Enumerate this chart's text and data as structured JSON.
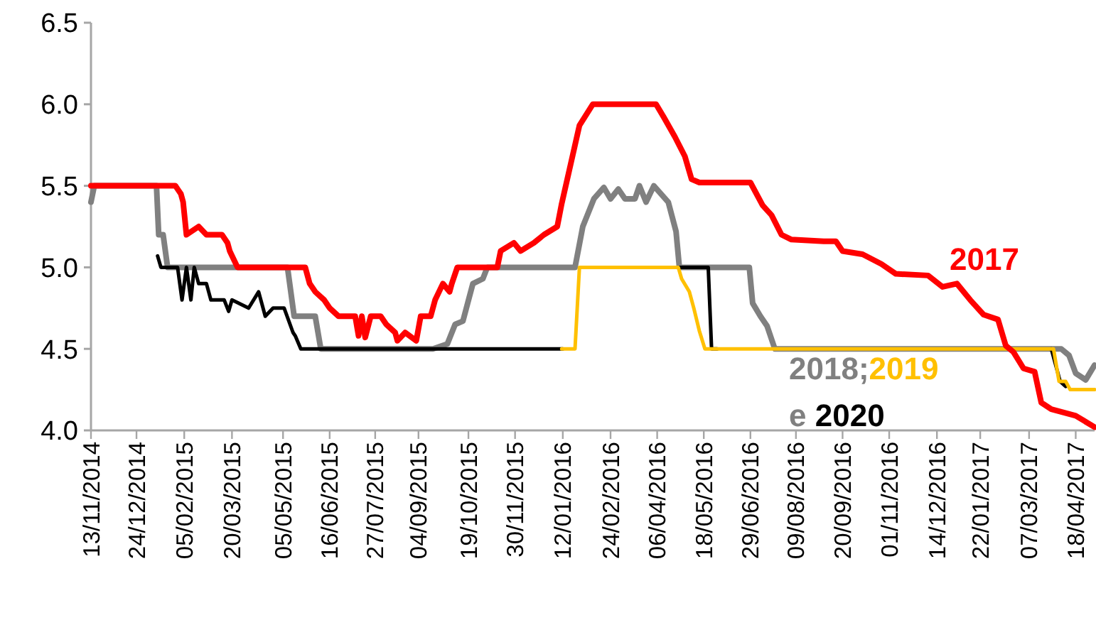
{
  "chart_data": {
    "type": "line",
    "legend": false,
    "grid": false,
    "line_style": "solid",
    "marker": "none",
    "xlim": [
      "2014-11-13",
      "2017-05-05"
    ],
    "xticks": [
      {
        "value": "2014-11-13",
        "label": "13/11/2014"
      },
      {
        "value": "2014-12-24",
        "label": "24/12/2014"
      },
      {
        "value": "2015-02-05",
        "label": "05/02/2015"
      },
      {
        "value": "2015-03-20",
        "label": "20/03/2015"
      },
      {
        "value": "2015-05-05",
        "label": "05/05/2015"
      },
      {
        "value": "2015-06-16",
        "label": "16/06/2015"
      },
      {
        "value": "2015-07-27",
        "label": "27/07/2015"
      },
      {
        "value": "2015-09-04",
        "label": "04/09/2015"
      },
      {
        "value": "2015-10-19",
        "label": "19/10/2015"
      },
      {
        "value": "2015-11-30",
        "label": "30/11/2015"
      },
      {
        "value": "2016-01-12",
        "label": "12/01/2016"
      },
      {
        "value": "2016-02-24",
        "label": "24/02/2016"
      },
      {
        "value": "2016-04-06",
        "label": "06/04/2016"
      },
      {
        "value": "2016-05-18",
        "label": "18/05/2016"
      },
      {
        "value": "2016-06-29",
        "label": "29/06/2016"
      },
      {
        "value": "2016-08-09",
        "label": "09/08/2016"
      },
      {
        "value": "2016-09-20",
        "label": "20/09/2016"
      },
      {
        "value": "2016-11-01",
        "label": "01/11/2016"
      },
      {
        "value": "2016-12-14",
        "label": "14/12/2016"
      },
      {
        "value": "2017-01-22",
        "label": "22/01/2017"
      },
      {
        "value": "2017-03-07",
        "label": "07/03/2017"
      },
      {
        "value": "2017-04-18",
        "label": "18/04/2017"
      }
    ],
    "ylim": [
      4.0,
      6.5
    ],
    "yticks": [
      {
        "value": 4.0,
        "label": "4.0"
      },
      {
        "value": 4.5,
        "label": "4.5"
      },
      {
        "value": 5.0,
        "label": "5.0"
      },
      {
        "value": 5.5,
        "label": "5.5"
      },
      {
        "value": 6.0,
        "label": "6.0"
      },
      {
        "value": 6.5,
        "label": "6.5"
      }
    ],
    "annotations": [
      ";",
      "e"
    ],
    "series": [
      {
        "name": "2018",
        "color": "#808080",
        "x": [
          "2014-11-13",
          "2014-11-16",
          "2015-01-11",
          "2015-01-13",
          "2015-01-17",
          "2015-01-21",
          "2015-05-09",
          "2015-05-15",
          "2015-06-03",
          "2015-06-08",
          "2015-09-17",
          "2015-09-30",
          "2015-10-07",
          "2015-10-14",
          "2015-10-23",
          "2015-11-01",
          "2015-11-05",
          "2016-01-23",
          "2016-01-30",
          "2016-02-09",
          "2016-02-18",
          "2016-02-24",
          "2016-03-02",
          "2016-03-08",
          "2016-03-17",
          "2016-03-21",
          "2016-03-27",
          "2016-04-03",
          "2016-04-16",
          "2016-04-23",
          "2016-04-26",
          "2016-06-28",
          "2016-07-01",
          "2016-07-08",
          "2016-07-14",
          "2016-07-21",
          "2017-04-05",
          "2017-04-12",
          "2017-04-18",
          "2017-04-27",
          "2017-05-05"
        ],
        "values": [
          5.4,
          5.5,
          5.5,
          5.2,
          5.2,
          5.0,
          5.0,
          4.7,
          4.7,
          4.5,
          4.5,
          4.53,
          4.65,
          4.67,
          4.9,
          4.93,
          5.0,
          5.0,
          5.25,
          5.42,
          5.49,
          5.42,
          5.48,
          5.42,
          5.42,
          5.5,
          5.4,
          5.5,
          5.4,
          5.22,
          5.0,
          5.0,
          4.78,
          4.7,
          4.64,
          4.5,
          4.5,
          4.46,
          4.35,
          4.31,
          4.4
        ]
      },
      {
        "name": "2020",
        "color": "#000000",
        "x": [
          "2015-01-12",
          "2015-01-15",
          "2015-01-30",
          "2015-02-03",
          "2015-02-07",
          "2015-02-11",
          "2015-02-14",
          "2015-02-18",
          "2015-02-25",
          "2015-03-01",
          "2015-03-13",
          "2015-03-17",
          "2015-03-20",
          "2015-04-04",
          "2015-04-13",
          "2015-04-19",
          "2015-04-26",
          "2015-05-06",
          "2015-05-14",
          "2015-05-16",
          "2015-05-21",
          "2016-01-12",
          "2016-01-20",
          "2016-04-26",
          "2016-05-22",
          "2016-05-25",
          "2016-05-30",
          "2017-03-20",
          "2017-03-27",
          "2017-04-04",
          "2017-04-09"
        ],
        "values": [
          5.07,
          5.0,
          5.0,
          4.8,
          5.0,
          4.8,
          5.0,
          4.9,
          4.9,
          4.8,
          4.8,
          4.73,
          4.8,
          4.75,
          4.85,
          4.7,
          4.75,
          4.75,
          4.6,
          4.58,
          4.5,
          4.5,
          null,
          5.0,
          5.0,
          4.5,
          4.5,
          null,
          4.5,
          4.3,
          4.27
        ]
      },
      {
        "name": "2019",
        "color": "#ffc000",
        "x": [
          "2016-01-11",
          "2016-01-23",
          "2016-01-27",
          "2016-04-25",
          "2016-04-28",
          "2016-05-05",
          "2016-05-09",
          "2016-05-14",
          "2016-05-19",
          "2017-03-29",
          "2017-04-03",
          "2017-04-09",
          "2017-04-13",
          "2017-05-05"
        ],
        "values": [
          4.5,
          4.5,
          5.0,
          5.0,
          4.93,
          4.85,
          4.75,
          4.61,
          4.5,
          4.5,
          4.3,
          4.3,
          4.25,
          4.25
        ]
      },
      {
        "name": "2017",
        "color": "#ff0000",
        "x": [
          "2014-11-13",
          "2015-01-28",
          "2015-02-02",
          "2015-02-04",
          "2015-02-07",
          "2015-02-18",
          "2015-02-25",
          "2015-03-11",
          "2015-03-16",
          "2015-03-18",
          "2015-03-25",
          "2015-05-25",
          "2015-05-29",
          "2015-06-03",
          "2015-06-11",
          "2015-06-16",
          "2015-06-24",
          "2015-07-09",
          "2015-07-12",
          "2015-07-15",
          "2015-07-18",
          "2015-07-23",
          "2015-08-01",
          "2015-08-06",
          "2015-08-14",
          "2015-08-16",
          "2015-08-23",
          "2015-09-02",
          "2015-09-06",
          "2015-09-15",
          "2015-09-19",
          "2015-09-26",
          "2015-10-02",
          "2015-10-04",
          "2015-10-09",
          "2015-11-14",
          "2015-11-17",
          "2015-11-29",
          "2015-12-05",
          "2015-12-17",
          "2015-12-26",
          "2016-01-07",
          "2016-01-11",
          "2016-01-20",
          "2016-01-27",
          "2016-02-08",
          "2016-04-05",
          "2016-04-12",
          "2016-04-22",
          "2016-05-01",
          "2016-05-07",
          "2016-05-14",
          "2016-06-29",
          "2016-07-10",
          "2016-07-18",
          "2016-07-27",
          "2016-08-05",
          "2016-09-03",
          "2016-09-14",
          "2016-09-20",
          "2016-10-08",
          "2016-10-25",
          "2016-11-07",
          "2016-12-06",
          "2016-12-19",
          "2017-01-01",
          "2017-01-13",
          "2017-01-25",
          "2017-02-07",
          "2017-02-14",
          "2017-02-21",
          "2017-03-02",
          "2017-03-12",
          "2017-03-18",
          "2017-03-27",
          "2017-04-18",
          "2017-05-05"
        ],
        "values": [
          5.5,
          5.5,
          5.45,
          5.4,
          5.2,
          5.25,
          5.2,
          5.2,
          5.15,
          5.1,
          5.0,
          5.0,
          4.9,
          4.85,
          4.8,
          4.75,
          4.7,
          4.7,
          4.58,
          4.7,
          4.57,
          4.7,
          4.7,
          4.65,
          4.6,
          4.55,
          4.6,
          4.55,
          4.7,
          4.7,
          4.8,
          4.9,
          4.85,
          4.9,
          5.0,
          5.0,
          5.1,
          5.15,
          5.1,
          5.15,
          5.2,
          5.25,
          5.39,
          5.66,
          5.87,
          6.0,
          6.0,
          5.92,
          5.8,
          5.68,
          5.54,
          5.52,
          5.52,
          5.38,
          5.32,
          5.2,
          5.17,
          5.16,
          5.16,
          5.1,
          5.08,
          5.02,
          4.96,
          4.95,
          4.88,
          4.9,
          4.8,
          4.71,
          4.68,
          4.52,
          4.48,
          4.38,
          4.36,
          4.17,
          4.13,
          4.09,
          4.02
        ]
      }
    ]
  }
}
